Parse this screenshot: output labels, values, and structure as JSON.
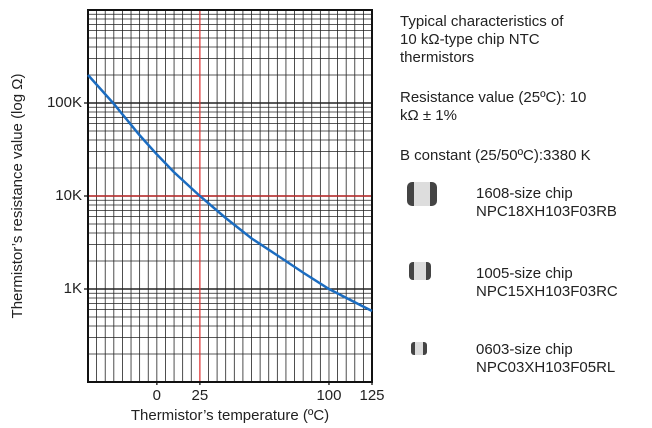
{
  "chart_data": {
    "type": "line",
    "y_label": "Thermistor’s resistance value (log Ω)",
    "x_label": "Thermistor’s temperature (ºC)",
    "x": [
      -40,
      -25,
      -10,
      0,
      10,
      25,
      40,
      55,
      70,
      85,
      100,
      115,
      125
    ],
    "series": [
      {
        "color": "#1b6cc0",
        "values": [
          200000,
          98000,
          45000,
          28000,
          18000,
          10000,
          5800,
          3500,
          2300,
          1500,
          1000,
          720,
          580
        ]
      }
    ],
    "xlim": [
      -40,
      125
    ],
    "xticks": [
      0,
      25,
      100,
      125
    ],
    "ylim": [
      100,
      1000000
    ],
    "yticks": [
      {
        "value": 1000,
        "label": "1K"
      },
      {
        "value": 10000,
        "label": "10K"
      },
      {
        "value": 100000,
        "label": "100K"
      }
    ],
    "log_y": true,
    "grid": true,
    "x_minor_step": 5,
    "reference_lines": {
      "x": 25,
      "y": 10000,
      "color": "#e03030"
    },
    "notes": [
      [
        "Typical characteristics of",
        "10 kΩ-type chip NTC",
        "thermistors"
      ],
      [
        "Resistance value (25ºC): 10",
        "kΩ ± 1%"
      ],
      [
        "B constant (25/50ºC):3380 K"
      ]
    ],
    "parts": [
      {
        "size": "1608-size chip",
        "part": "NPC18XH103F03RB"
      },
      {
        "size": "1005-size chip",
        "part": "NPC15XH103F03RC"
      },
      {
        "size": "0603-size chip",
        "part": "NPC03XH103F05RL"
      }
    ]
  }
}
